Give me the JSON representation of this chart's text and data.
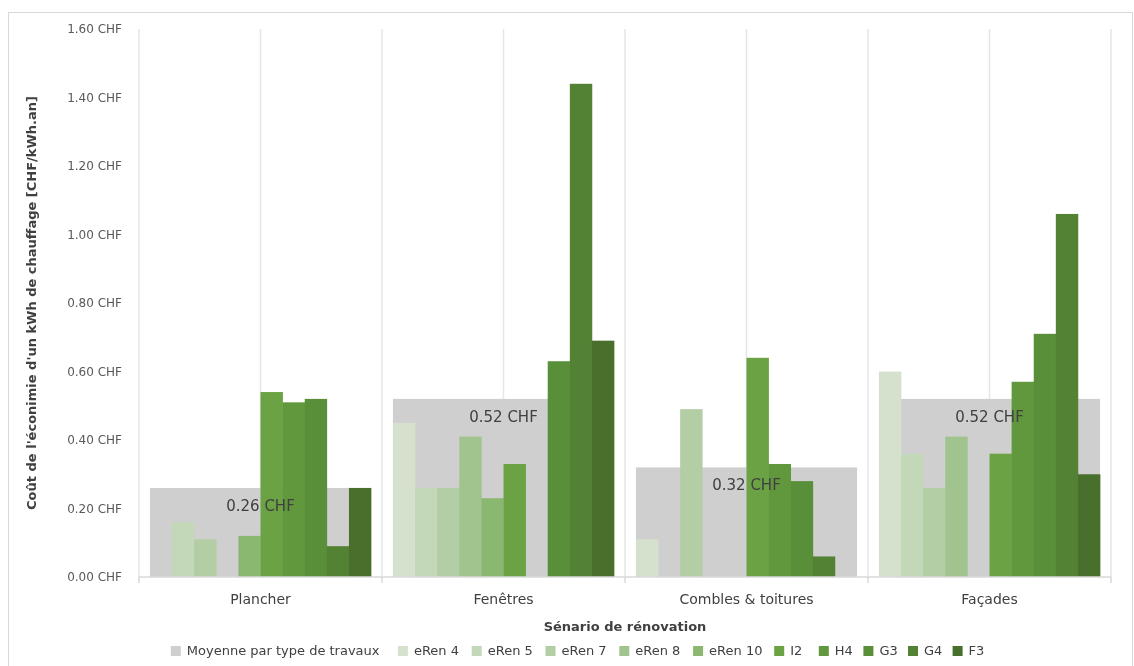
{
  "chart_data": {
    "type": "bar",
    "categories": [
      "Plancher",
      "Fenêtres",
      "Combles & toitures",
      "Façades"
    ],
    "xlabel": "Sénario de rénovation",
    "ylabel": "Coût de l'éconimie d'un kWh de chauffage [CHF/kWh.an]",
    "ylim": [
      0,
      1.6
    ],
    "yticks": [
      {
        "value": 0,
        "label": "0.00 CHF"
      },
      {
        "value": 0.2,
        "label": "0.20 CHF"
      },
      {
        "value": 0.4,
        "label": "0.40 CHF"
      },
      {
        "value": 0.6,
        "label": "0.60 CHF"
      },
      {
        "value": 0.8,
        "label": "0.80 CHF"
      },
      {
        "value": 1.0,
        "label": "1.00 CHF"
      },
      {
        "value": 1.2,
        "label": "1.20 CHF"
      },
      {
        "value": 1.4,
        "label": "1.40 CHF"
      },
      {
        "value": 1.6,
        "label": "1.60 CHF"
      }
    ],
    "grid": "x",
    "legend": "bottom",
    "series": [
      {
        "name": "Moyenne par type de travaux",
        "color": "#d0cfd0",
        "values": [
          0.26,
          0.52,
          0.32,
          0.52
        ],
        "value_labels": [
          "0.26 CHF",
          "0.52 CHF",
          "0.32 CHF",
          "0.52 CHF"
        ]
      },
      {
        "name": "eRen 4",
        "color": "#d5e1cc",
        "values": [
          null,
          0.45,
          0.11,
          0.6
        ]
      },
      {
        "name": "eRen 5",
        "color": "#c3d7b9",
        "values": [
          0.16,
          0.26,
          null,
          0.36
        ]
      },
      {
        "name": "eRen 7",
        "color": "#b3cda4",
        "values": [
          0.11,
          0.26,
          0.49,
          0.26
        ]
      },
      {
        "name": "eRen 8",
        "color": "#a1c48f",
        "values": [
          null,
          0.41,
          null,
          0.41
        ]
      },
      {
        "name": "eRen 10",
        "color": "#8ab870",
        "values": [
          0.12,
          0.23,
          null,
          null
        ]
      },
      {
        "name": "I2",
        "color": "#6aa244",
        "values": [
          0.54,
          0.33,
          0.64,
          0.36
        ]
      },
      {
        "name": "H4",
        "color": "#62983d",
        "values": [
          0.51,
          null,
          0.33,
          0.57
        ]
      },
      {
        "name": "G3",
        "color": "#5a8f39",
        "values": [
          0.52,
          0.63,
          0.28,
          0.71
        ]
      },
      {
        "name": "G4",
        "color": "#548235",
        "values": [
          0.09,
          1.44,
          0.06,
          1.06
        ]
      },
      {
        "name": "F3",
        "color": "#48702c",
        "values": [
          0.26,
          0.69,
          null,
          0.3
        ]
      }
    ]
  }
}
